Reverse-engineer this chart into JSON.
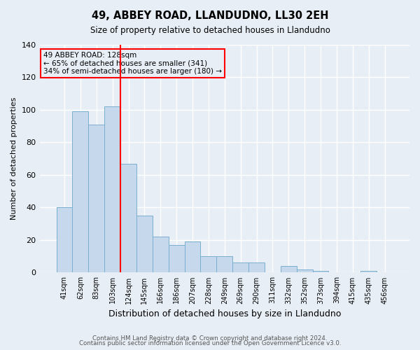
{
  "title": "49, ABBEY ROAD, LLANDUDNO, LL30 2EH",
  "subtitle": "Size of property relative to detached houses in Llandudno",
  "xlabel": "Distribution of detached houses by size in Llandudno",
  "ylabel": "Number of detached properties",
  "categories": [
    "41sqm",
    "62sqm",
    "83sqm",
    "103sqm",
    "124sqm",
    "145sqm",
    "166sqm",
    "186sqm",
    "207sqm",
    "228sqm",
    "249sqm",
    "269sqm",
    "290sqm",
    "311sqm",
    "332sqm",
    "352sqm",
    "373sqm",
    "394sqm",
    "415sqm",
    "435sqm",
    "456sqm"
  ],
  "values": [
    40,
    99,
    91,
    102,
    67,
    35,
    22,
    17,
    19,
    10,
    10,
    6,
    6,
    0,
    4,
    2,
    1,
    0,
    0,
    1,
    0
  ],
  "bar_color": "#c5d8ec",
  "bar_edge_color": "#7aaed0",
  "background_color": "#e8eef5",
  "grid_color": "#ffffff",
  "ylim": [
    0,
    140
  ],
  "yticks": [
    0,
    20,
    40,
    60,
    80,
    100,
    120,
    140
  ],
  "red_line_index": 4,
  "annotation_text": "49 ABBEY ROAD: 128sqm\n← 65% of detached houses are smaller (341)\n34% of semi-detached houses are larger (180) →",
  "footer_line1": "Contains HM Land Registry data © Crown copyright and database right 2024.",
  "footer_line2": "Contains public sector information licensed under the Open Government Licence v3.0."
}
